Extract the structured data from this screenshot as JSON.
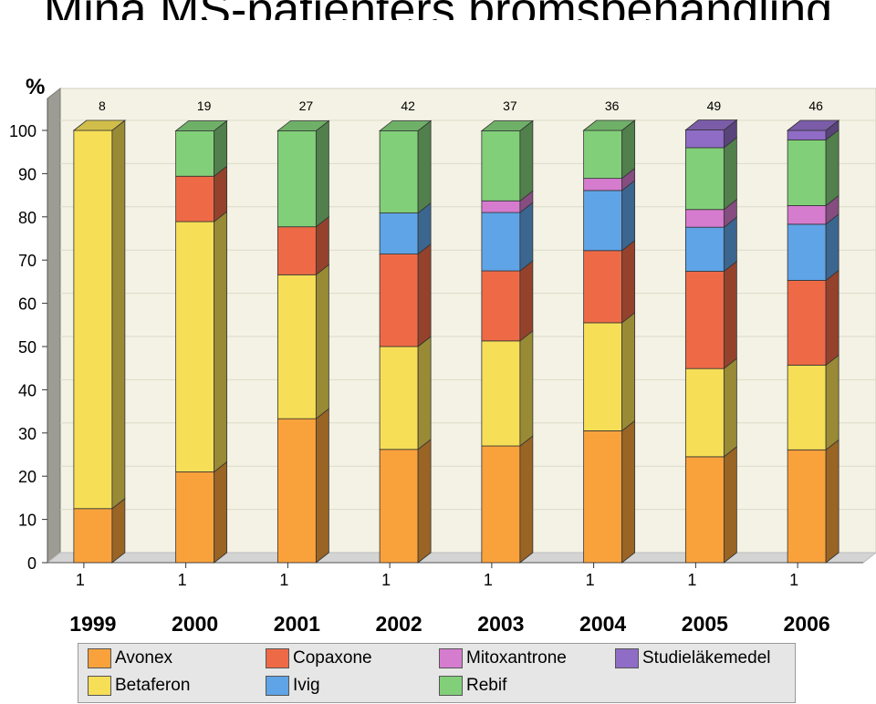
{
  "title": "Mina MS-patienters bromsbehandling",
  "chart_data": {
    "type": "bar",
    "stacked": true,
    "ylabel": "%",
    "ylim": [
      0,
      100
    ],
    "yticks": [
      0,
      10,
      20,
      30,
      40,
      50,
      60,
      70,
      80,
      90,
      100
    ],
    "categories": [
      "1999",
      "2000",
      "2001",
      "2002",
      "2003",
      "2004",
      "2005",
      "2006"
    ],
    "tick_labels": [
      "1",
      "1",
      "1",
      "1",
      "1",
      "1",
      "1",
      "1"
    ],
    "counts": [
      "8",
      "19",
      "27",
      "42",
      "37",
      "36",
      "49",
      "46"
    ],
    "grid": true,
    "legend_position": "bottom",
    "series": [
      {
        "name": "Avonex",
        "color": "#f9a23c",
        "values": [
          12.5,
          21,
          33.3,
          26.2,
          27,
          30.5,
          24.5,
          26.1
        ]
      },
      {
        "name": "Betaferon",
        "color": "#f6df57",
        "values": [
          87.5,
          57.9,
          33.3,
          23.8,
          24.3,
          25,
          20.4,
          19.6
        ]
      },
      {
        "name": "Copaxone",
        "color": "#ee6a47",
        "values": [
          0,
          10.5,
          11.1,
          21.4,
          16.2,
          16.7,
          22.5,
          19.6
        ]
      },
      {
        "name": "Ivig",
        "color": "#5fa4e6",
        "values": [
          0,
          0,
          0,
          9.5,
          13.5,
          13.9,
          10.2,
          13
        ]
      },
      {
        "name": "Mitoxantrone",
        "color": "#d67ccf",
        "values": [
          0,
          0,
          0,
          0,
          2.7,
          2.8,
          4.1,
          4.3
        ]
      },
      {
        "name": "Rebif",
        "color": "#82cf7a",
        "values": [
          0,
          10.5,
          22.2,
          19,
          16.2,
          11.1,
          14.3,
          15.2
        ]
      },
      {
        "name": "Studieläkemedel",
        "color": "#8f6cc6",
        "values": [
          0,
          0,
          0,
          0,
          0,
          0,
          4.1,
          2.2
        ]
      }
    ],
    "legend_order": [
      "Avonex",
      "Copaxone",
      "Mitoxantrone",
      "Studieläkemedel",
      "Betaferon",
      "Ivig",
      "Rebif"
    ]
  }
}
